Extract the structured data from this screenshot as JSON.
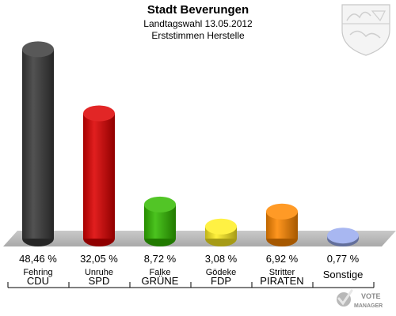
{
  "header": {
    "title": "Stadt Beverungen",
    "subtitle1": "Landtagswahl 13.05.2012",
    "subtitle2": "Erststimmen Herstelle"
  },
  "chart_data": {
    "type": "bar",
    "categories": [
      "CDU",
      "SPD",
      "GRÜNE",
      "FDP",
      "PIRATEN",
      "Sonstige"
    ],
    "candidates": [
      "Fehring",
      "Unruhe",
      "Falke",
      "Gödeke",
      "Stritter",
      ""
    ],
    "values": [
      48.46,
      32.05,
      8.72,
      3.08,
      6.92,
      0.77
    ],
    "value_labels": [
      "48,46 %",
      "32,05 %",
      "8,72 %",
      "3,08 %",
      "6,92 %",
      "0,77 %"
    ],
    "colors": [
      "#3a3a3a",
      "#dd0000",
      "#33bb00",
      "#ffee22",
      "#ff8800",
      "#99aaee"
    ],
    "ylim": [
      0,
      50
    ],
    "grid": false,
    "legend": "none"
  },
  "brand": {
    "line1": "VOTE",
    "line2": "MANAGER"
  },
  "icons": {
    "crest": "nrw-coat-of-arms-icon",
    "logo": "vote-manager-check-icon"
  }
}
